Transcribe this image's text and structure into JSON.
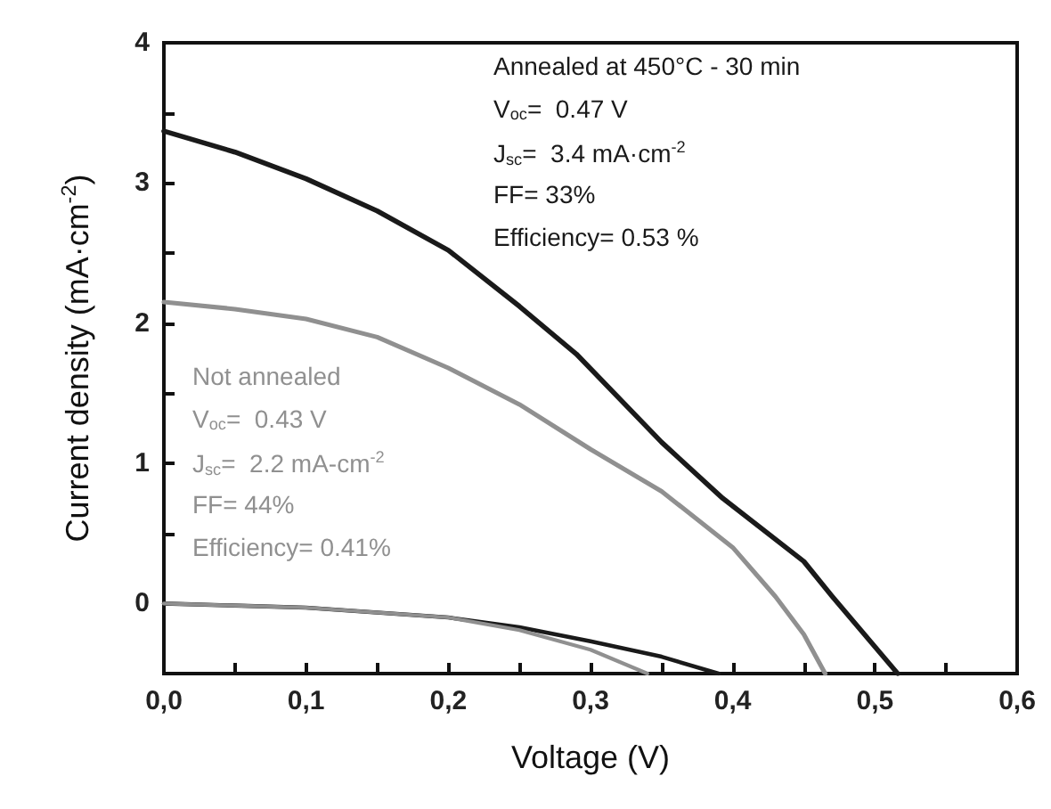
{
  "chart_data": {
    "type": "line",
    "xlabel": "Voltage (V)",
    "ylabel": "Current density (mA·cm$^{-2}$)",
    "xlim": [
      0,
      0.6
    ],
    "xticks": [
      {
        "value": 0,
        "label": "0,0"
      },
      {
        "value": 0.1,
        "label": "0,1"
      },
      {
        "value": 0.2,
        "label": "0,2"
      },
      {
        "value": 0.3,
        "label": "0,3"
      },
      {
        "value": 0.4,
        "label": "0,4"
      },
      {
        "value": 0.5,
        "label": "0,5"
      },
      {
        "value": 0.6,
        "label": "0,6"
      }
    ],
    "ylim": [
      -0.5,
      4
    ],
    "yticks": [
      0,
      1,
      2,
      3,
      4
    ],
    "grid": false,
    "marker": "none",
    "line_style": "solid",
    "series": [
      {
        "color": "#1a1a1a",
        "x": [
          0,
          0.05,
          0.1,
          0.15,
          0.2,
          0.25,
          0.29,
          0.35,
          0.393,
          0.45,
          0.47,
          0.516
        ],
        "values": [
          3.37,
          3.22,
          3.03,
          2.8,
          2.52,
          2.12,
          1.78,
          1.15,
          0.75,
          0.3,
          0.05,
          -0.5
        ]
      },
      {
        "color": "#909090",
        "x": [
          0,
          0.05,
          0.1,
          0.15,
          0.2,
          0.25,
          0.3,
          0.35,
          0.4,
          0.43,
          0.45,
          0.465
        ],
        "values": [
          2.15,
          2.1,
          2.03,
          1.9,
          1.68,
          1.42,
          1.1,
          0.8,
          0.4,
          0.05,
          -0.22,
          -0.5
        ]
      },
      {
        "color": "#1a1a1a",
        "x": [
          0,
          0.1,
          0.2,
          0.25,
          0.3,
          0.35,
          0.39
        ],
        "values": [
          0,
          -0.03,
          -0.1,
          -0.17,
          -0.27,
          -0.38,
          -0.5
        ]
      },
      {
        "color": "#909090",
        "x": [
          0,
          0.1,
          0.2,
          0.25,
          0.3,
          0.34
        ],
        "values": [
          0,
          -0.03,
          -0.1,
          -0.19,
          -0.33,
          -0.5
        ]
      }
    ],
    "annotations": [
      "Annealed at 450°C - 30 min",
      "V$_{oc}$=  0.47 V",
      "J$_{sc}$=  3.4 mA·cm$^{-2}$",
      "FF= 33%",
      "Efficiency= 0.53 %",
      "Not annealed",
      "V$_{oc}$=  0.43 V",
      "J$_{sc}$=  2.2 mA-cm$^{-2}$",
      "FF= 44%",
      "Efficiency= 0.41%"
    ]
  }
}
